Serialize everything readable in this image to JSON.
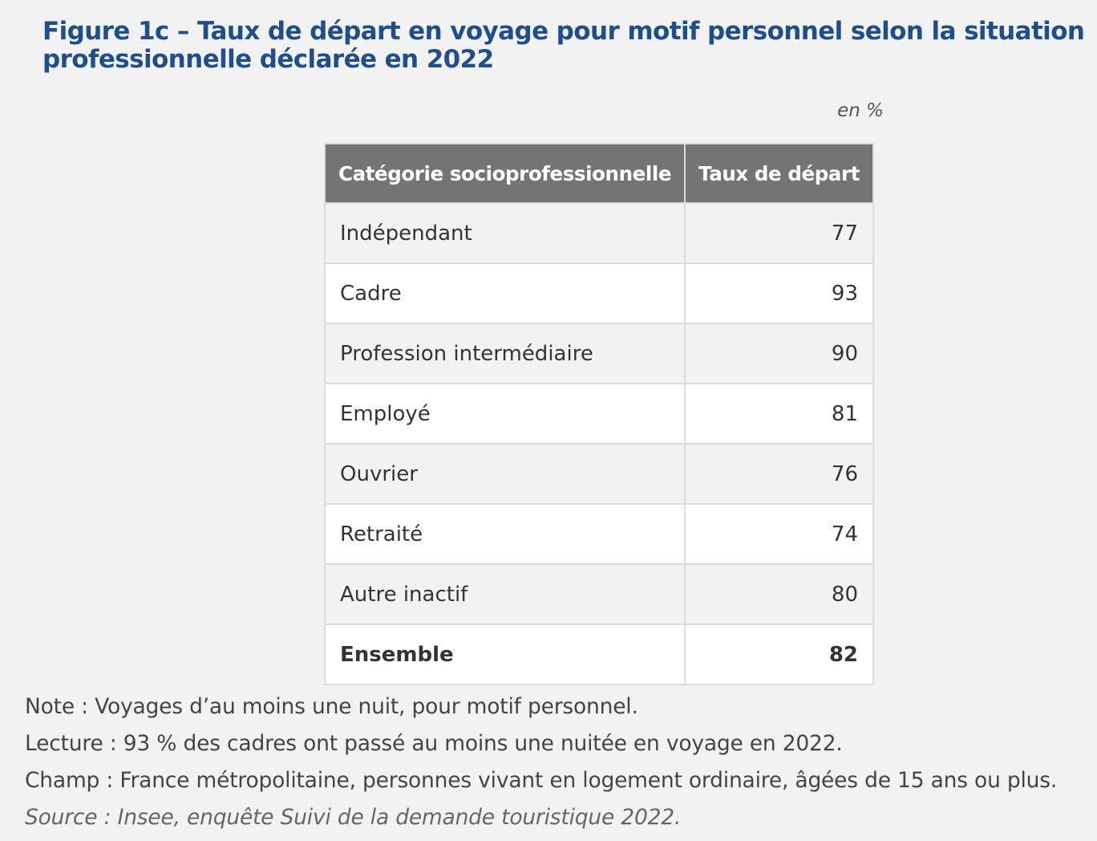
{
  "title": "Figure 1c – Taux de départ en voyage pour motif personnel selon la situation professionnelle déclarée en 2022",
  "unit_label": "en %",
  "chart_data": {
    "type": "table",
    "columns": [
      "Catégorie socioprofessionnelle",
      "Taux de départ"
    ],
    "rows": [
      {
        "category": "Indépendant",
        "value": "77"
      },
      {
        "category": "Cadre",
        "value": "93"
      },
      {
        "category": "Profession intermédiaire",
        "value": "90"
      },
      {
        "category": "Employé",
        "value": "81"
      },
      {
        "category": "Ouvrier",
        "value": "76"
      },
      {
        "category": "Retraité",
        "value": "74"
      },
      {
        "category": "Autre inactif",
        "value": "80"
      },
      {
        "category": "Ensemble",
        "value": "82",
        "bold": true
      }
    ]
  },
  "notes": {
    "note": "Note : Voyages d’au moins une nuit, pour motif personnel.",
    "lecture": "Lecture : 93 % des cadres ont passé au moins une nuitée en voyage en 2022.",
    "champ": "Champ : France métropolitaine, personnes vivant en logement ordinaire, âgées de 15 ans ou plus.",
    "source": "Source : Insee, enquête Suivi de la demande touristique 2022."
  }
}
